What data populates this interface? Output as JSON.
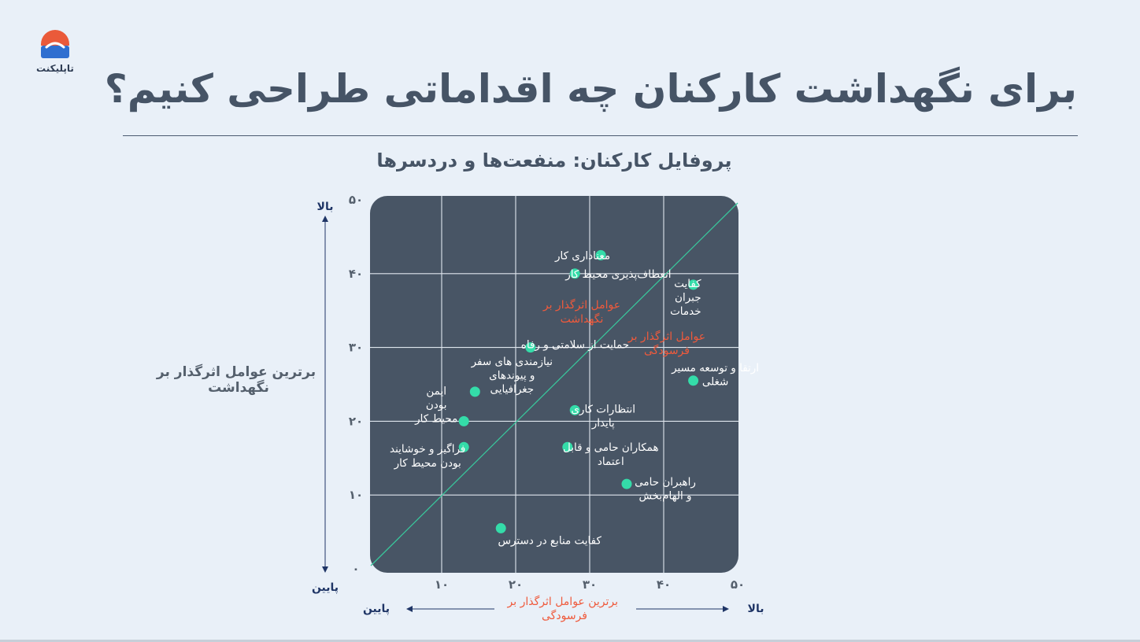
{
  "brand": {
    "name": "تاپلیکنت",
    "colors": {
      "top": "#ea5a3a",
      "bottom": "#2f6fd0"
    }
  },
  "header": {
    "title": "برای نگهداشت کارکنان چه اقداماتی طراحی کنیم؟"
  },
  "chart_data": {
    "type": "scatter",
    "title": "پروفایل کارکنان: منفعت‌ها و دردسرها",
    "ylabel": [
      "برترین عوامل اثرگذار بر",
      "نگهداشت"
    ],
    "xlabel": [
      "برترین عوامل اثرگذار بر",
      "فرسودگی"
    ],
    "y_high": "بالا",
    "y_low": "پایین",
    "x_high": "بالا",
    "x_low": "پایین",
    "xlim": [
      0,
      50
    ],
    "ylim": [
      0,
      50
    ],
    "x_ticks": [
      "۱۰",
      "۲۰",
      "۳۰",
      "۴۰",
      "۵۰"
    ],
    "y_ticks": [
      "۰",
      "۱۰",
      "۲۰",
      "۳۰",
      "۴۰",
      "۵۰"
    ],
    "grid": true,
    "diagonal": true,
    "zone_labels": [
      {
        "lines": [
          "عوامل اثرگذار بر",
          "نگهداشت"
        ]
      },
      {
        "lines": [
          "عوامل اثرگذار بر",
          "فرسودگی"
        ]
      }
    ],
    "points": [
      {
        "x": 31.5,
        "y": 42.5,
        "lines": [
          "معناداری کار"
        ]
      },
      {
        "x": 28,
        "y": 40,
        "lines": [
          "انعطاف‌پذیری محیط کار"
        ]
      },
      {
        "x": 44,
        "y": 38.5,
        "lines": [
          "کفایت",
          "جبران",
          "خدمات"
        ]
      },
      {
        "x": 22,
        "y": 30,
        "lines": [
          "حمایت از سلامتی و رفاه"
        ]
      },
      {
        "x": 44,
        "y": 25.5,
        "lines": [
          "ارتقا و توسعه مسیر",
          "شغلی"
        ]
      },
      {
        "x": 14.5,
        "y": 24,
        "lines": [
          "نیازمندی های سفر",
          "و پیوندهای",
          "جغرافیایی"
        ]
      },
      {
        "x": 28,
        "y": 21.5,
        "lines": [
          "انتظارات کاری",
          "پایدار"
        ]
      },
      {
        "x": 13,
        "y": 20,
        "lines": [
          "ایمن",
          "بودن",
          "محیط کار"
        ]
      },
      {
        "x": 13,
        "y": 16.5,
        "lines": [
          "فراگیر و خوشایند",
          "بودن محیط کار"
        ]
      },
      {
        "x": 27,
        "y": 16.5,
        "lines": [
          "همکاران حامی و قابل",
          "اعتماد"
        ]
      },
      {
        "x": 35,
        "y": 11.5,
        "lines": [
          "راهبران حامی",
          "و الهام‌بخش"
        ]
      },
      {
        "x": 18,
        "y": 5.5,
        "lines": [
          "کفایت منابع در دسترس"
        ]
      }
    ],
    "colors": {
      "panel": "#485565",
      "point": "#34dca9",
      "diagonal": "#39c59b",
      "zone_label": "#ef5a3c",
      "axis_text": "#1f3566"
    }
  }
}
